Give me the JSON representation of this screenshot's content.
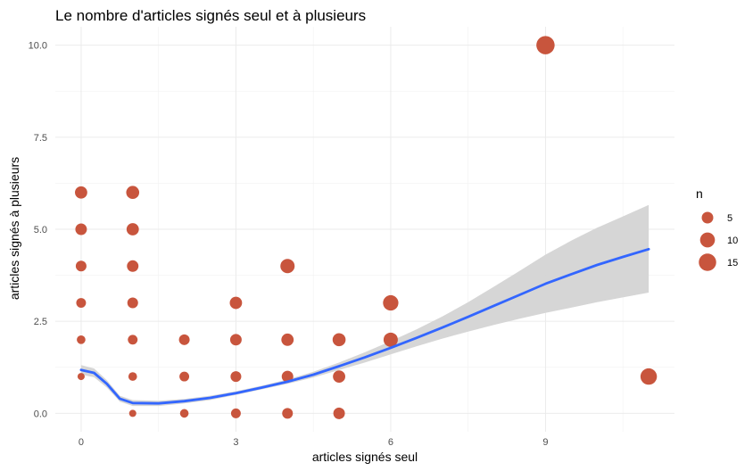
{
  "chart_data": {
    "type": "scatter",
    "title": "Le nombre d'articles signés seul et à plusieurs",
    "xlabel": "articles signés seul",
    "ylabel": "articles signés à plusieurs",
    "xlim": [
      -0.5,
      11.5
    ],
    "ylim": [
      -0.5,
      10.5
    ],
    "x_ticks": [
      0,
      3,
      6,
      9
    ],
    "x_tick_labels": [
      "0",
      "3",
      "6",
      "9"
    ],
    "y_ticks": [
      0,
      2.5,
      5,
      7.5,
      10
    ],
    "y_tick_labels": [
      "0.0",
      "2.5",
      "5.0",
      "7.5",
      "10.0"
    ],
    "grid": true,
    "point_color": "#c8553d",
    "smooth_color": "#3366ff",
    "band_color": "#d4d4d4",
    "points": [
      {
        "x": 0,
        "y": 1,
        "n": 1
      },
      {
        "x": 0,
        "y": 2,
        "n": 2
      },
      {
        "x": 0,
        "y": 3,
        "n": 3
      },
      {
        "x": 0,
        "y": 4,
        "n": 4
      },
      {
        "x": 0,
        "y": 5,
        "n": 5
      },
      {
        "x": 0,
        "y": 6,
        "n": 6
      },
      {
        "x": 1,
        "y": 0,
        "n": 1
      },
      {
        "x": 1,
        "y": 1,
        "n": 2
      },
      {
        "x": 1,
        "y": 2,
        "n": 3
      },
      {
        "x": 1,
        "y": 3,
        "n": 4
      },
      {
        "x": 1,
        "y": 4,
        "n": 5
      },
      {
        "x": 1,
        "y": 5,
        "n": 6
      },
      {
        "x": 1,
        "y": 6,
        "n": 7
      },
      {
        "x": 2,
        "y": 0,
        "n": 2
      },
      {
        "x": 2,
        "y": 1,
        "n": 3
      },
      {
        "x": 2,
        "y": 2,
        "n": 4
      },
      {
        "x": 3,
        "y": 0,
        "n": 3
      },
      {
        "x": 3,
        "y": 1,
        "n": 4
      },
      {
        "x": 3,
        "y": 2,
        "n": 5
      },
      {
        "x": 3,
        "y": 3,
        "n": 6
      },
      {
        "x": 4,
        "y": 0,
        "n": 4
      },
      {
        "x": 4,
        "y": 1,
        "n": 5
      },
      {
        "x": 4,
        "y": 2,
        "n": 6
      },
      {
        "x": 4,
        "y": 4,
        "n": 9
      },
      {
        "x": 5,
        "y": 0,
        "n": 5
      },
      {
        "x": 5,
        "y": 1,
        "n": 6
      },
      {
        "x": 5,
        "y": 2,
        "n": 7
      },
      {
        "x": 6,
        "y": 2,
        "n": 9
      },
      {
        "x": 6,
        "y": 3,
        "n": 11
      },
      {
        "x": 9,
        "y": 10,
        "n": 17
      },
      {
        "x": 11,
        "y": 1,
        "n": 13
      }
    ],
    "smooth": {
      "x": [
        0,
        0.25,
        0.5,
        0.75,
        1,
        1.5,
        2,
        2.5,
        3,
        3.5,
        4,
        4.5,
        5,
        5.5,
        6,
        6.5,
        7,
        7.5,
        8,
        8.5,
        9,
        9.5,
        10,
        10.5,
        11
      ],
      "y": [
        1.18,
        1.1,
        0.8,
        0.4,
        0.28,
        0.27,
        0.33,
        0.42,
        0.55,
        0.7,
        0.86,
        1.05,
        1.28,
        1.52,
        1.78,
        2.05,
        2.33,
        2.62,
        2.92,
        3.22,
        3.52,
        3.78,
        4.03,
        4.25,
        4.46
      ],
      "lower": [
        1.05,
        0.98,
        0.7,
        0.32,
        0.2,
        0.2,
        0.27,
        0.36,
        0.5,
        0.65,
        0.8,
        0.97,
        1.18,
        1.38,
        1.6,
        1.82,
        2.03,
        2.22,
        2.4,
        2.57,
        2.73,
        2.87,
        3.02,
        3.15,
        3.28
      ],
      "upper": [
        1.31,
        1.22,
        0.9,
        0.48,
        0.36,
        0.34,
        0.39,
        0.48,
        0.6,
        0.75,
        0.92,
        1.13,
        1.38,
        1.66,
        1.96,
        2.28,
        2.63,
        3.02,
        3.44,
        3.87,
        4.31,
        4.69,
        5.04,
        5.35,
        5.66
      ]
    },
    "legend": {
      "title": "n",
      "placement": "right",
      "entries": [
        {
          "label": "5",
          "n": 5
        },
        {
          "label": "10",
          "n": 10
        },
        {
          "label": "15",
          "n": 15
        }
      ]
    }
  }
}
